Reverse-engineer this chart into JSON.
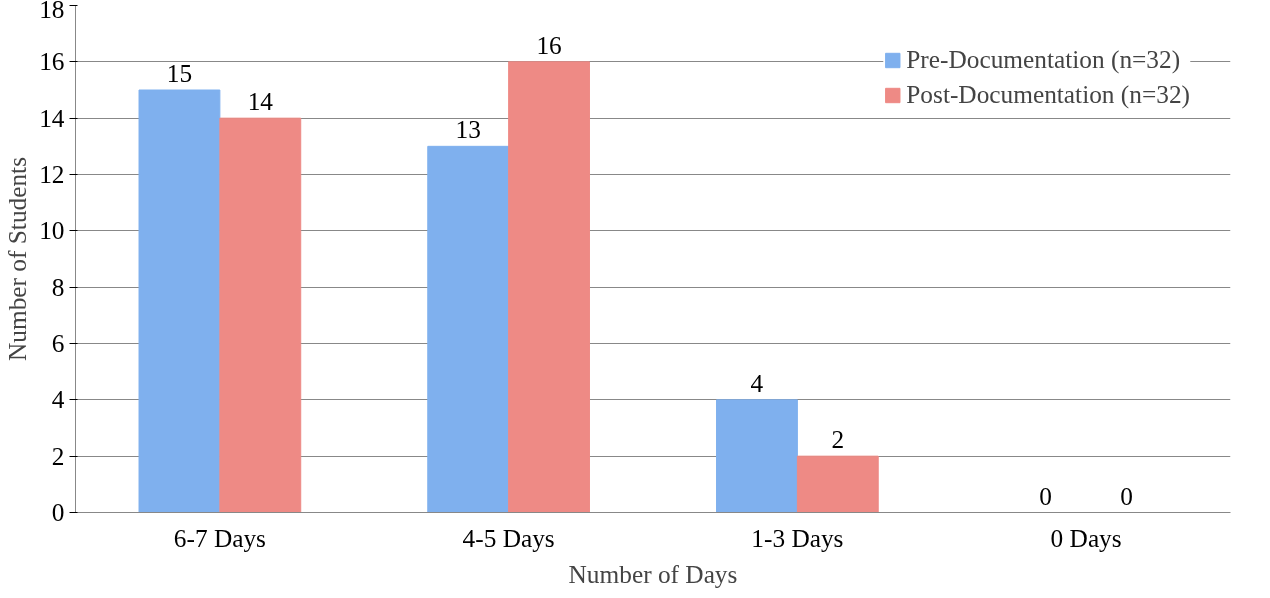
{
  "chart_data": {
    "type": "bar",
    "xlabel": "Number of Days",
    "ylabel": "Number of Students",
    "categories": [
      "6-7 Days",
      "4-5 Days",
      "1-3 Days",
      "0 Days"
    ],
    "series": [
      {
        "name": "Pre-Documentation (n=32)",
        "color": "#7fb0ee",
        "values": [
          15,
          13,
          4,
          0
        ]
      },
      {
        "name": "Post-Documentation (n=32)",
        "color": "#ee8a85",
        "values": [
          14,
          16,
          2,
          0
        ]
      }
    ],
    "ylim": [
      0,
      18
    ],
    "yticks": [
      0,
      2,
      4,
      6,
      8,
      10,
      12,
      14,
      16,
      18
    ],
    "grid": "y",
    "legend": "top right",
    "data_labels": true
  }
}
